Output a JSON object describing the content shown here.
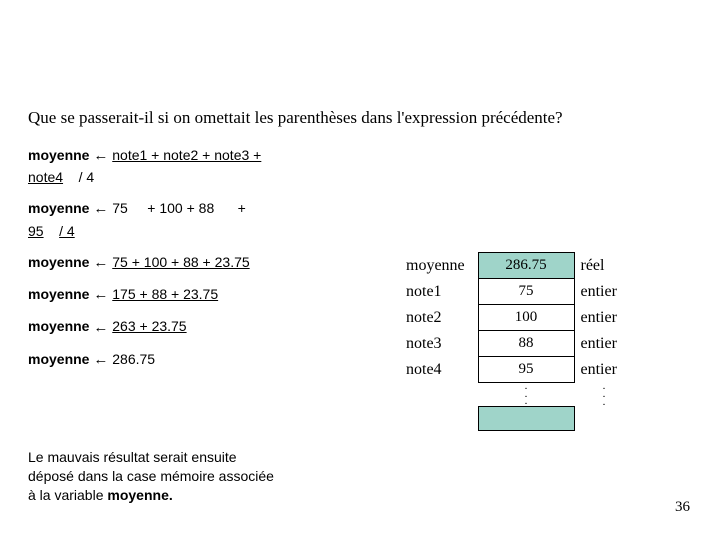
{
  "question": "Que se passerait-il si on omettait les parenthèses dans l'expression précédente?",
  "calc": {
    "var": "moyenne",
    "l1a": "note1 + note2 + note3 +",
    "l1b": "note4",
    "l1c": "/ 4",
    "l2a": "75",
    "l2b": "+   100  +   88",
    "l2c": "+",
    "l2d": "95",
    "l2e": "/ 4",
    "l3": "75  +  100  +  88  +  23.75",
    "l4": "175  +  88  +  23.75",
    "l5": "263  +  23.75",
    "l6": "286.75"
  },
  "memory": {
    "rows": [
      {
        "label": "moyenne",
        "value": "286.75",
        "type": "réel",
        "filled": true
      },
      {
        "label": "note1",
        "value": "75",
        "type": "entier",
        "filled": false
      },
      {
        "label": "note2",
        "value": "100",
        "type": "entier",
        "filled": false
      },
      {
        "label": "note3",
        "value": "88",
        "type": "entier",
        "filled": false
      },
      {
        "label": "note4",
        "value": "95",
        "type": "entier",
        "filled": false
      }
    ],
    "empty_filled": true
  },
  "conclusion": {
    "p1": "Le mauvais résultat serait ensuite",
    "p2": "déposé dans la case mémoire associée",
    "p3a": "à la variable ",
    "p3b": "moyenne."
  },
  "pagenum": "36",
  "colors": {
    "box_bg": "#9fd4c9"
  }
}
